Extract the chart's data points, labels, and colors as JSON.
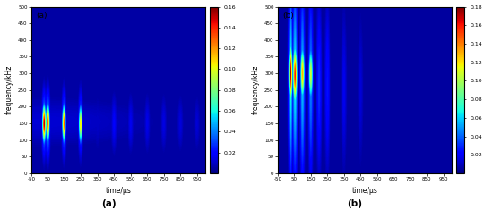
{
  "panel_a": {
    "label": "(a)",
    "cmap_max": 0.16,
    "colorbar_ticks": [
      0.02,
      0.04,
      0.06,
      0.08,
      0.1,
      0.12,
      0.14,
      0.16
    ],
    "hot_spots": [
      {
        "t": 28,
        "f": 150,
        "amp": 0.16,
        "st": 7,
        "sf": 35
      },
      {
        "t": 50,
        "f": 152,
        "amp": 0.15,
        "st": 7,
        "sf": 35
      },
      {
        "t": 148,
        "f": 150,
        "amp": 0.13,
        "st": 7,
        "sf": 35
      },
      {
        "t": 248,
        "f": 148,
        "amp": 0.11,
        "st": 7,
        "sf": 35
      }
    ],
    "stripes": [
      {
        "t": 28,
        "amp": 0.045,
        "st": 10,
        "fc": 150,
        "sf": 70
      },
      {
        "t": 50,
        "amp": 0.05,
        "st": 10,
        "fc": 150,
        "sf": 70
      },
      {
        "t": 148,
        "amp": 0.04,
        "st": 10,
        "fc": 150,
        "sf": 70
      },
      {
        "t": 248,
        "amp": 0.035,
        "st": 10,
        "fc": 150,
        "sf": 70
      },
      {
        "t": 450,
        "amp": 0.018,
        "st": 14,
        "fc": 150,
        "sf": 65
      },
      {
        "t": 550,
        "amp": 0.016,
        "st": 14,
        "fc": 150,
        "sf": 65
      },
      {
        "t": 650,
        "amp": 0.015,
        "st": 14,
        "fc": 150,
        "sf": 65
      },
      {
        "t": 750,
        "amp": 0.014,
        "st": 14,
        "fc": 150,
        "sf": 65
      },
      {
        "t": 850,
        "amp": 0.013,
        "st": 14,
        "fc": 150,
        "sf": 65
      },
      {
        "t": 950,
        "amp": 0.012,
        "st": 14,
        "fc": 150,
        "sf": 65
      }
    ],
    "bg_level": 0.005
  },
  "panel_b": {
    "label": "(b)",
    "cmap_max": 0.18,
    "colorbar_ticks": [
      0.02,
      0.04,
      0.06,
      0.08,
      0.1,
      0.12,
      0.14,
      0.16,
      0.18
    ],
    "hot_spots": [
      {
        "t": 28,
        "f": 300,
        "amp": 0.18,
        "st": 8,
        "sf": 55
      },
      {
        "t": 55,
        "f": 295,
        "amp": 0.16,
        "st": 8,
        "sf": 55
      },
      {
        "t": 100,
        "f": 300,
        "amp": 0.13,
        "st": 8,
        "sf": 50
      },
      {
        "t": 150,
        "f": 298,
        "amp": 0.11,
        "st": 8,
        "sf": 50
      }
    ],
    "stripes": [
      {
        "t": 28,
        "amp": 0.07,
        "st": 10,
        "fc": 280,
        "sf": 200
      },
      {
        "t": 55,
        "amp": 0.065,
        "st": 10,
        "fc": 280,
        "sf": 200
      },
      {
        "t": 100,
        "amp": 0.055,
        "st": 10,
        "fc": 270,
        "sf": 200
      },
      {
        "t": 150,
        "amp": 0.045,
        "st": 10,
        "fc": 270,
        "sf": 200
      },
      {
        "t": 200,
        "amp": 0.03,
        "st": 12,
        "fc": 260,
        "sf": 190
      },
      {
        "t": 250,
        "amp": 0.025,
        "st": 12,
        "fc": 260,
        "sf": 190
      },
      {
        "t": 350,
        "amp": 0.018,
        "st": 14,
        "fc": 250,
        "sf": 180
      },
      {
        "t": 450,
        "amp": 0.014,
        "st": 14,
        "fc": 250,
        "sf": 170
      }
    ],
    "bg_level": 0.005
  },
  "time_range": [
    -50,
    1000
  ],
  "freq_range": [
    0,
    500
  ],
  "time_ticks": [
    -50,
    50,
    150,
    250,
    350,
    450,
    550,
    650,
    750,
    850,
    950
  ],
  "freq_ticks": [
    0,
    50,
    100,
    150,
    200,
    250,
    300,
    350,
    400,
    450,
    500
  ],
  "xlabel": "time/μs",
  "ylabel": "frequency/kHz",
  "bottom_label_a": "(a)",
  "bottom_label_b": "(b)"
}
